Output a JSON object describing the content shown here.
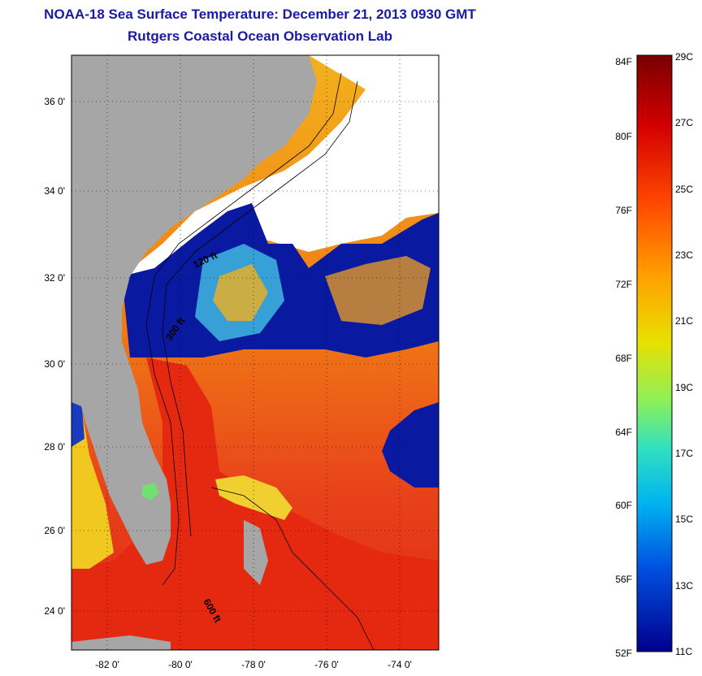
{
  "title": {
    "line1": "NOAA-18 Sea Surface Temperature:  December 21, 2013 0930 GMT",
    "line2": "Rutgers Coastal Ocean Observation Lab"
  },
  "map": {
    "lat_labels": [
      "36 0'",
      "34 0'",
      "32 0'",
      "30 0'",
      "28 0'",
      "26 0'",
      "24 0'"
    ],
    "lon_labels": [
      "-82 0'",
      "-80 0'",
      "-78 0'",
      "-76 0'",
      "-74 0'"
    ],
    "contour_labels": [
      "120 ft",
      "300 ft",
      "600 ft"
    ],
    "colors": {
      "land": "#a6a6a6",
      "cloud": "#ffffff",
      "cold": "#0a1aa0",
      "gulfstream": "#e62a10",
      "warm": "#f08a18"
    }
  },
  "colorbar": {
    "fahrenheit": [
      "84F",
      "80F",
      "76F",
      "72F",
      "68F",
      "64F",
      "60F",
      "56F",
      "52F"
    ],
    "celsius": [
      "29C",
      "27C",
      "25C",
      "23C",
      "21C",
      "19C",
      "17C",
      "15C",
      "13C",
      "11C"
    ]
  }
}
